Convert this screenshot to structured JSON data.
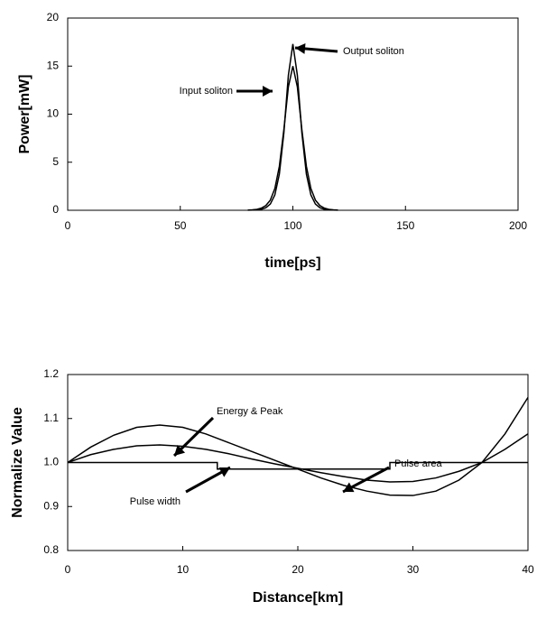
{
  "chart_data": [
    {
      "type": "line",
      "y_label": "Power[mW]",
      "x_label": "time[ps]",
      "annotations": [
        "Input soliton",
        "Output soliton"
      ],
      "xlim": [
        0,
        200
      ],
      "xticks": [
        0,
        50,
        100,
        150,
        200
      ],
      "ylim": [
        0,
        20
      ],
      "yticks": [
        0,
        5,
        10,
        15,
        20
      ],
      "series": [
        {
          "color": "#000000",
          "x": [
            80,
            82,
            84,
            86,
            88,
            90,
            92,
            94,
            96,
            98,
            100,
            102,
            104,
            106,
            108,
            110,
            112,
            114,
            116,
            118,
            120
          ],
          "values": [
            0.02,
            0.045,
            0.1,
            0.22,
            0.49,
            1.06,
            2.26,
            4.58,
            8.39,
            12.83,
            15,
            12.83,
            8.39,
            4.58,
            2.26,
            1.06,
            0.49,
            0.22,
            0.1,
            0.045,
            0.02
          ]
        },
        {
          "color": "#000000",
          "x": [
            80,
            82,
            84,
            86,
            88,
            90,
            92,
            94,
            96,
            98,
            100,
            102,
            104,
            106,
            108,
            110,
            112,
            114,
            116,
            118,
            120
          ],
          "values": [
            0.01,
            0.02,
            0.04,
            0.1,
            0.26,
            0.65,
            1.6,
            3.77,
            8.04,
            14.04,
            17.3,
            14.04,
            8.04,
            3.77,
            1.6,
            0.65,
            0.26,
            0.1,
            0.04,
            0.02,
            0.01
          ]
        }
      ]
    },
    {
      "type": "line",
      "y_label": "Normalize Value",
      "x_label": "Distance[km]",
      "annotations": [
        "Energy & Peak",
        "Pulse area",
        "Pulse width"
      ],
      "xlim": [
        0,
        40
      ],
      "xticks": [
        0,
        10,
        20,
        30,
        40
      ],
      "ylim": [
        0.8,
        1.2
      ],
      "yticks": [
        0.8,
        0.9,
        {
          "value": 1,
          "label": "1.0"
        },
        1.1,
        1.2
      ],
      "series": [
        {
          "color": "#000000",
          "x": [
            0,
            2,
            4,
            6,
            8,
            10,
            12,
            14,
            16,
            18,
            20,
            22,
            24,
            26,
            28,
            30,
            32,
            34,
            36,
            38,
            40
          ],
          "values": [
            1.0,
            1.035,
            1.062,
            1.08,
            1.085,
            1.08,
            1.065,
            1.045,
            1.025,
            1.005,
            0.985,
            0.965,
            0.948,
            0.935,
            0.926,
            0.925,
            0.935,
            0.96,
            1.0,
            1.065,
            1.148
          ]
        },
        {
          "color": "#000000",
          "x": [
            0,
            2,
            4,
            6,
            8,
            10,
            12,
            14,
            16,
            18,
            20,
            22,
            24,
            26,
            28,
            30,
            32,
            34,
            36,
            38,
            40
          ],
          "values": [
            1.0,
            1.018,
            1.03,
            1.038,
            1.04,
            1.037,
            1.03,
            1.02,
            1.008,
            0.997,
            0.987,
            0.977,
            0.968,
            0.96,
            0.956,
            0.957,
            0.965,
            0.98,
            1.0,
            1.03,
            1.065
          ]
        },
        {
          "color": "#000000",
          "x": [
            0,
            13,
            13,
            28,
            28,
            40
          ],
          "values": [
            1,
            1,
            0.985,
            0.985,
            1,
            1
          ]
        }
      ]
    }
  ]
}
